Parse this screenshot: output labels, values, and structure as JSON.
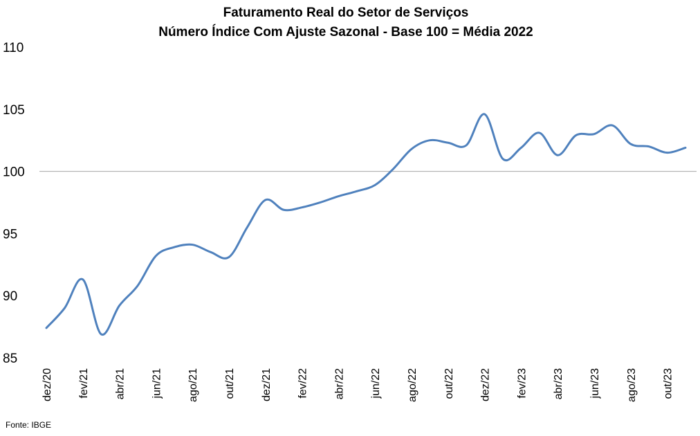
{
  "chart_data": {
    "type": "line",
    "title": "Faturamento Real do Setor de Serviços",
    "subtitle": "Número Índice Com Ajuste Sazonal - Base 100 = Média 2022",
    "source": "Fonte: IBGE",
    "ylim": [
      85,
      110
    ],
    "yticks": [
      "85",
      "90",
      "95",
      "100",
      "105",
      "110"
    ],
    "x_tick_labels": [
      "dez/20",
      "fev/21",
      "abr/21",
      "jun/21",
      "ago/21",
      "out/21",
      "dez/21",
      "fev/22",
      "abr/22",
      "jun/22",
      "ago/22",
      "out/22",
      "dez/22",
      "fev/23",
      "abr/23",
      "jun/23",
      "ago/23",
      "out/23"
    ],
    "reference_line": 100,
    "grid": false,
    "legend": "none",
    "colors": {
      "line": "#4f81bd",
      "reference": "#a6a6a6"
    },
    "series": [
      {
        "x": [
          "dez/20",
          "jan/21",
          "fev/21",
          "mar/21",
          "abr/21",
          "mai/21",
          "jun/21",
          "jul/21",
          "ago/21",
          "set/21",
          "out/21",
          "nov/21",
          "dez/21",
          "jan/22",
          "fev/22",
          "mar/22",
          "abr/22",
          "mai/22",
          "jun/22",
          "jul/22",
          "ago/22",
          "set/22",
          "out/22",
          "nov/22",
          "dez/22",
          "jan/23",
          "fev/23",
          "mar/23",
          "abr/23",
          "mai/23",
          "jun/23",
          "jul/23",
          "ago/23",
          "set/23",
          "out/23",
          "nov/23"
        ],
        "values": [
          87.4,
          89.0,
          91.3,
          86.9,
          89.2,
          90.8,
          93.2,
          93.9,
          94.1,
          93.5,
          93.1,
          95.5,
          97.7,
          96.9,
          97.1,
          97.5,
          98.0,
          98.4,
          98.9,
          100.2,
          101.8,
          102.5,
          102.3,
          102.1,
          104.6,
          101.0,
          101.9,
          103.1,
          101.3,
          102.9,
          103.0,
          103.7,
          102.2,
          102.0,
          101.5,
          101.9
        ]
      }
    ]
  }
}
